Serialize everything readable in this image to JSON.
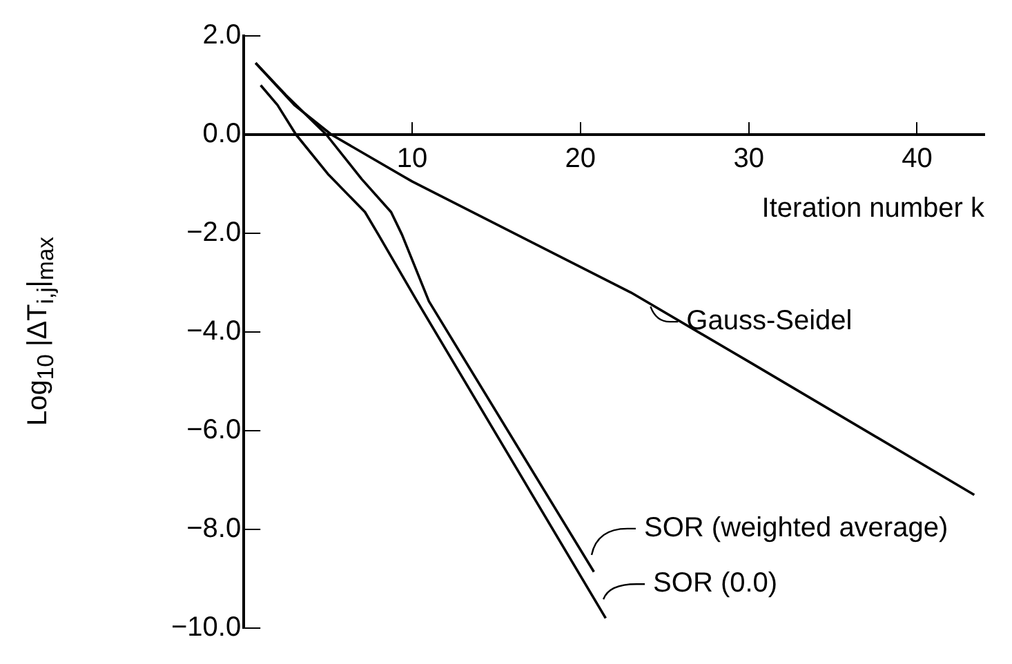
{
  "chart_data": {
    "type": "line",
    "xlabel": "Iteration number k",
    "ylabel": "Log$_{10}$ |ΔT$_{i,j}$|$_{max}$",
    "xlim": [
      0,
      44
    ],
    "xticks": [
      10,
      20,
      30,
      40
    ],
    "ylim": [
      -10,
      2
    ],
    "yticks": [
      {
        "value": 2,
        "label": "2.0"
      },
      {
        "value": 0,
        "label": "0.0"
      },
      {
        "value": -2,
        "label": "−2.0"
      },
      {
        "value": -4,
        "label": "−4.0"
      },
      {
        "value": -6,
        "label": "−6.0"
      },
      {
        "value": -8,
        "label": "−8.0"
      },
      {
        "value": -10,
        "label": "−10.0"
      }
    ],
    "grid": false,
    "legend": false,
    "marker": "none",
    "line_style": "solid",
    "series": [
      {
        "color": "#000000",
        "x": [
          0.7,
          3,
          5.2,
          10,
          23,
          30,
          43.4
        ],
        "values": [
          1.45,
          0.6,
          0,
          -0.95,
          -3.2,
          -4.6,
          -7.3
        ]
      },
      {
        "color": "#000000",
        "x": [
          0.7,
          2.5,
          4.9,
          7,
          8.75,
          9.4,
          11,
          20.8
        ],
        "values": [
          1.45,
          0.8,
          0,
          -0.9,
          -1.57,
          -2.03,
          -3.38,
          -8.86
        ]
      },
      {
        "color": "#000000",
        "x": [
          1,
          2,
          3.1,
          5,
          7.2,
          8,
          10.3,
          21.5
        ],
        "values": [
          1.0,
          0.6,
          0,
          -0.8,
          -1.57,
          -2.03,
          -3.38,
          -9.8
        ]
      }
    ],
    "annotations": [
      {
        "text": "Gauss-Seidel",
        "x": 24,
        "y": -3.4
      },
      {
        "text": "SOR (weighted average)",
        "x": 20.5,
        "y": -8.6
      },
      {
        "text": "SOR (0.0)",
        "x": 21.2,
        "y": -9.5
      }
    ]
  }
}
